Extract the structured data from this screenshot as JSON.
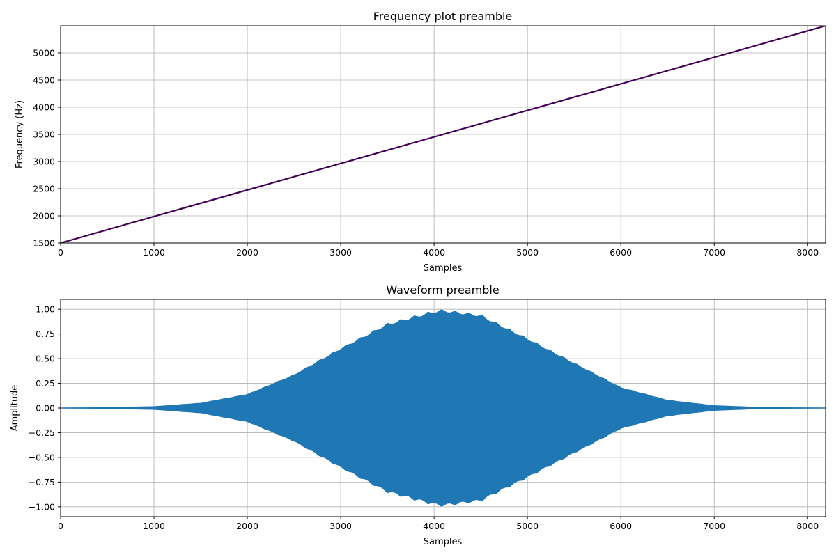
{
  "chart_data": [
    {
      "type": "line",
      "title": "Frequency plot preamble",
      "xlabel": "Samples",
      "ylabel": "Frequency (Hz)",
      "xlim": [
        0,
        8192
      ],
      "ylim": [
        1500,
        5500
      ],
      "xticks": [
        0,
        1000,
        2000,
        3000,
        4000,
        5000,
        6000,
        7000,
        8000
      ],
      "yticks": [
        1500,
        2000,
        2500,
        3000,
        3500,
        4000,
        4500,
        5000
      ],
      "ytick_labels": [
        "1500",
        "2000",
        "2500",
        "3000",
        "3500",
        "4000",
        "4500",
        "5000"
      ],
      "grid": true,
      "color": "#440154",
      "series": [
        {
          "x": [
            0,
            8192
          ],
          "y": [
            1500,
            5500
          ]
        }
      ]
    },
    {
      "type": "area",
      "title": "Waveform preamble",
      "xlabel": "Samples",
      "ylabel": "Amplitude",
      "xlim": [
        0,
        8192
      ],
      "ylim": [
        -1.1,
        1.1
      ],
      "xticks": [
        0,
        1000,
        2000,
        3000,
        4000,
        5000,
        6000,
        7000,
        8000
      ],
      "yticks": [
        -1.0,
        -0.75,
        -0.5,
        -0.25,
        0.0,
        0.25,
        0.5,
        0.75,
        1.0
      ],
      "ytick_labels": [
        "−1.00",
        "−0.75",
        "−0.50",
        "−0.25",
        "0.00",
        "0.25",
        "0.50",
        "0.75",
        "1.00"
      ],
      "grid": true,
      "color": "#1f77b4",
      "envelope": {
        "x": [
          0,
          500,
          1000,
          1500,
          2000,
          2500,
          3000,
          3500,
          4000,
          4100,
          4500,
          5000,
          5500,
          6000,
          6500,
          7000,
          7500,
          8192
        ],
        "upper": [
          0.0,
          0.005,
          0.015,
          0.05,
          0.14,
          0.34,
          0.61,
          0.86,
          0.99,
          1.0,
          0.95,
          0.71,
          0.46,
          0.21,
          0.08,
          0.025,
          0.006,
          0.0
        ],
        "lower": [
          0.0,
          -0.005,
          -0.015,
          -0.05,
          -0.14,
          -0.34,
          -0.61,
          -0.86,
          -0.99,
          -1.0,
          -0.95,
          -0.71,
          -0.46,
          -0.21,
          -0.08,
          -0.025,
          -0.006,
          0.0
        ]
      }
    }
  ]
}
